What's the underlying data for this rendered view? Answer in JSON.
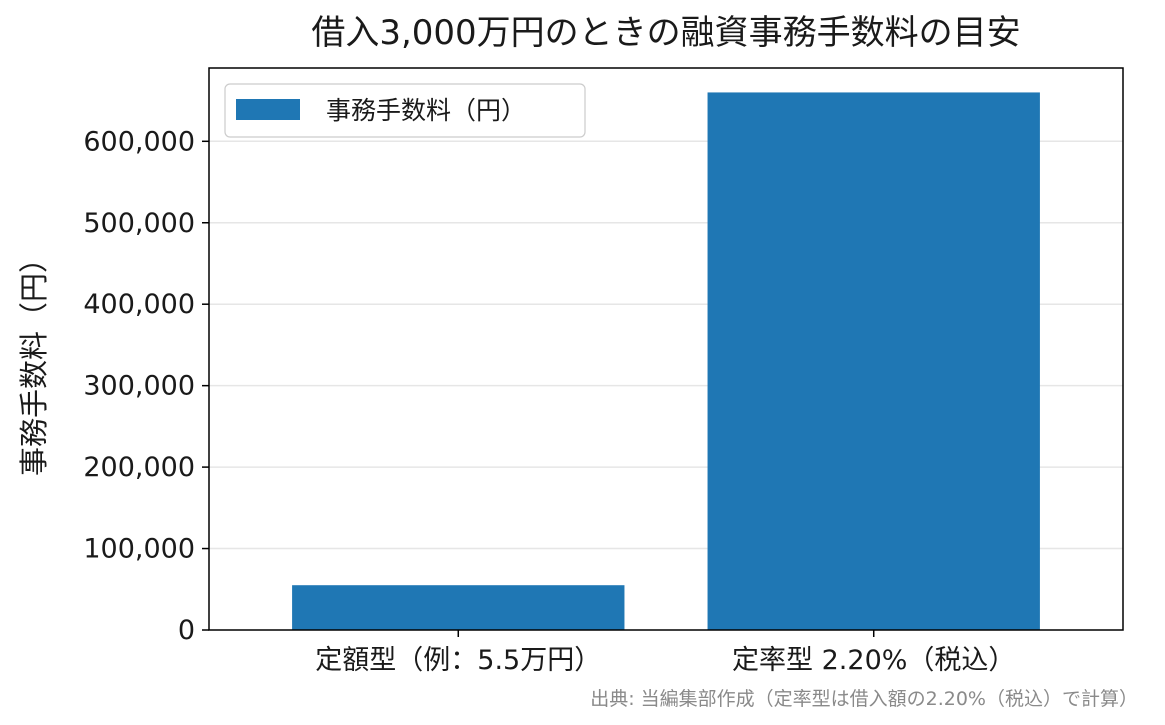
{
  "chart_data": {
    "type": "bar",
    "title": "借入3,000万円のときの融資事務手数料の目安",
    "xlabel": "",
    "ylabel": "事務手数料（円）",
    "categories": [
      "定額型（例：5.5万円）",
      "定率型 2.20%（税込）"
    ],
    "series": [
      {
        "name": "事務手数料（円）",
        "values": [
          55000,
          660000
        ]
      }
    ],
    "ylim": [
      0,
      690000
    ],
    "yticks": [
      0,
      100000,
      200000,
      300000,
      400000,
      500000,
      600000
    ],
    "ytick_labels": [
      "0",
      "100,000",
      "200,000",
      "300,000",
      "400,000",
      "500,000",
      "600,000"
    ],
    "grid": "horizontal",
    "legend_position": "upper-left",
    "bar_color": "#1f77b4",
    "source_note": "出典: 当編集部作成（定率型は借入額の2.20%（税込）で計算）"
  }
}
